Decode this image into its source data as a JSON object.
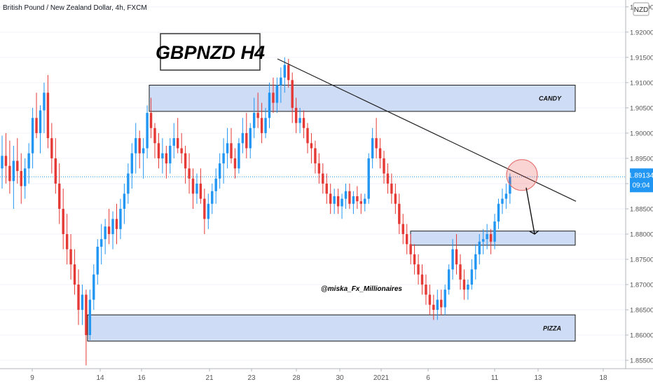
{
  "header": {
    "symbol_title": "British Pound / New Zealand Dollar, 4h, FXCM"
  },
  "title_box": "GBPNZD H4",
  "watermark": "@miska_Fx_Millionaires",
  "currency_badge": "NZD",
  "price_tag": {
    "price": "1.89134",
    "countdown": "09:04"
  },
  "colors": {
    "up": "#2196f3",
    "down": "#e53935",
    "zone_fill": "#cfdcf6",
    "pricetag": "#2196f3"
  },
  "chart_data": {
    "type": "candlestick",
    "title": "GBPNZD H4",
    "ylim": [
      1.8535,
      1.9255
    ],
    "y_ticks": [
      "1.85500",
      "1.86000",
      "1.86500",
      "1.87000",
      "1.87500",
      "1.88000",
      "1.88500",
      "1.89000",
      "1.89500",
      "1.90000",
      "1.90500",
      "1.91000",
      "1.91500",
      "1.92000",
      "1.92500"
    ],
    "x_ticks": [
      "9",
      "14",
      "16",
      "21",
      "23",
      "28",
      "30",
      "2021",
      "6",
      "11",
      "13",
      "18"
    ],
    "current_price": 1.89134,
    "zones": [
      {
        "label": "CANDY",
        "low": 1.9043,
        "high": 1.9095
      },
      {
        "label": "",
        "low": 1.8778,
        "high": 1.8806
      },
      {
        "label": "PIZZA",
        "low": 1.8588,
        "high": 1.864
      }
    ],
    "trendline": {
      "from": 1.9147,
      "to": 1.8865
    },
    "highlight_price": 1.8917,
    "target_price": 1.88,
    "candles_ohlc": [
      [
        1.893,
        1.8995,
        1.889,
        1.8955
      ],
      [
        1.8955,
        1.9,
        1.89,
        1.8935
      ],
      [
        1.8935,
        1.8985,
        1.888,
        1.8905
      ],
      [
        1.8905,
        1.8975,
        1.885,
        1.8945
      ],
      [
        1.8945,
        1.899,
        1.89,
        1.8925
      ],
      [
        1.8925,
        1.896,
        1.886,
        1.8895
      ],
      [
        1.8895,
        1.895,
        1.887,
        1.893
      ],
      [
        1.893,
        1.898,
        1.89,
        1.896
      ],
      [
        1.896,
        1.905,
        1.893,
        1.903
      ],
      [
        1.903,
        1.908,
        1.899,
        1.9
      ],
      [
        1.9,
        1.9055,
        1.896,
        1.9045
      ],
      [
        1.9045,
        1.91,
        1.9,
        1.908
      ],
      [
        1.908,
        1.9115,
        1.897,
        1.899
      ],
      [
        1.899,
        1.902,
        1.892,
        1.895
      ],
      [
        1.895,
        1.899,
        1.888,
        1.89
      ],
      [
        1.89,
        1.894,
        1.882,
        1.885
      ],
      [
        1.885,
        1.889,
        1.877,
        1.88
      ],
      [
        1.88,
        1.884,
        1.874,
        1.877
      ],
      [
        1.877,
        1.88,
        1.871,
        1.874
      ],
      [
        1.874,
        1.877,
        1.868,
        1.87
      ],
      [
        1.87,
        1.873,
        1.862,
        1.865
      ],
      [
        1.865,
        1.87,
        1.862,
        1.868
      ],
      [
        1.868,
        1.869,
        1.854,
        1.86
      ],
      [
        1.86,
        1.869,
        1.859,
        1.867
      ],
      [
        1.867,
        1.874,
        1.865,
        1.872
      ],
      [
        1.872,
        1.879,
        1.87,
        1.8775
      ],
      [
        1.8775,
        1.882,
        1.874,
        1.879
      ],
      [
        1.879,
        1.883,
        1.876,
        1.8815
      ],
      [
        1.8815,
        1.885,
        1.878,
        1.88
      ],
      [
        1.88,
        1.8845,
        1.877,
        1.883
      ],
      [
        1.883,
        1.886,
        1.878,
        1.881
      ],
      [
        1.881,
        1.887,
        1.879,
        1.885
      ],
      [
        1.885,
        1.89,
        1.882,
        1.888
      ],
      [
        1.888,
        1.894,
        1.886,
        1.892
      ],
      [
        1.892,
        1.898,
        1.889,
        1.896
      ],
      [
        1.896,
        1.902,
        1.892,
        1.899
      ],
      [
        1.899,
        1.9005,
        1.893,
        1.896
      ],
      [
        1.896,
        1.899,
        1.891,
        1.897
      ],
      [
        1.897,
        1.9055,
        1.895,
        1.904
      ],
      [
        1.904,
        1.907,
        1.899,
        1.901
      ],
      [
        1.901,
        1.902,
        1.895,
        1.898
      ],
      [
        1.898,
        1.9,
        1.893,
        1.895
      ],
      [
        1.895,
        1.899,
        1.892,
        1.896
      ],
      [
        1.896,
        1.8975,
        1.891,
        1.894
      ],
      [
        1.894,
        1.899,
        1.892,
        1.8975
      ],
      [
        1.8975,
        1.902,
        1.895,
        1.899
      ],
      [
        1.899,
        1.903,
        1.896,
        1.897
      ],
      [
        1.897,
        1.9,
        1.894,
        1.896
      ],
      [
        1.896,
        1.8975,
        1.89,
        1.893
      ],
      [
        1.893,
        1.896,
        1.888,
        1.891
      ],
      [
        1.891,
        1.893,
        1.885,
        1.888
      ],
      [
        1.888,
        1.892,
        1.886,
        1.89
      ],
      [
        1.89,
        1.893,
        1.886,
        1.887
      ],
      [
        1.887,
        1.889,
        1.88,
        1.883
      ],
      [
        1.883,
        1.888,
        1.881,
        1.886
      ],
      [
        1.886,
        1.89,
        1.884,
        1.8885
      ],
      [
        1.8885,
        1.893,
        1.886,
        1.891
      ],
      [
        1.891,
        1.896,
        1.889,
        1.894
      ],
      [
        1.894,
        1.899,
        1.89,
        1.896
      ],
      [
        1.896,
        1.901,
        1.893,
        1.898
      ],
      [
        1.898,
        1.901,
        1.894,
        1.895
      ],
      [
        1.895,
        1.897,
        1.891,
        1.893
      ],
      [
        1.893,
        1.899,
        1.892,
        1.898
      ],
      [
        1.898,
        1.903,
        1.896,
        1.9
      ],
      [
        1.9,
        1.904,
        1.895,
        1.897
      ],
      [
        1.897,
        1.902,
        1.895,
        1.901
      ],
      [
        1.901,
        1.907,
        1.899,
        1.904
      ],
      [
        1.904,
        1.908,
        1.901,
        1.903
      ],
      [
        1.903,
        1.906,
        1.898,
        1.9
      ],
      [
        1.9,
        1.905,
        1.899,
        1.903
      ],
      [
        1.903,
        1.91,
        1.901,
        1.908
      ],
      [
        1.908,
        1.911,
        1.904,
        1.906
      ],
      [
        1.906,
        1.911,
        1.904,
        1.9095
      ],
      [
        1.9095,
        1.913,
        1.906,
        1.911
      ],
      [
        1.911,
        1.915,
        1.908,
        1.9135
      ],
      [
        1.9135,
        1.9147,
        1.909,
        1.9105
      ],
      [
        1.9105,
        1.912,
        1.902,
        1.905
      ],
      [
        1.905,
        1.907,
        1.9,
        1.902
      ],
      [
        1.902,
        1.905,
        1.9,
        1.903
      ],
      [
        1.903,
        1.9045,
        1.899,
        1.901
      ],
      [
        1.901,
        1.902,
        1.896,
        1.898
      ],
      [
        1.898,
        1.9,
        1.894,
        1.897
      ],
      [
        1.897,
        1.8985,
        1.892,
        1.894
      ],
      [
        1.894,
        1.896,
        1.89,
        1.892
      ],
      [
        1.892,
        1.894,
        1.888,
        1.89
      ],
      [
        1.89,
        1.892,
        1.886,
        1.888
      ],
      [
        1.888,
        1.89,
        1.884,
        1.886
      ],
      [
        1.886,
        1.889,
        1.884,
        1.8875
      ],
      [
        1.8875,
        1.889,
        1.884,
        1.8855
      ],
      [
        1.8855,
        1.888,
        1.883,
        1.887
      ],
      [
        1.887,
        1.89,
        1.885,
        1.8885
      ],
      [
        1.8885,
        1.89,
        1.885,
        1.886
      ],
      [
        1.886,
        1.8885,
        1.884,
        1.8875
      ],
      [
        1.8875,
        1.8895,
        1.885,
        1.8865
      ],
      [
        1.8865,
        1.888,
        1.884,
        1.886
      ],
      [
        1.886,
        1.888,
        1.8845,
        1.887
      ],
      [
        1.887,
        1.896,
        1.886,
        1.895
      ],
      [
        1.895,
        1.901,
        1.893,
        1.899
      ],
      [
        1.899,
        1.903,
        1.895,
        1.897
      ],
      [
        1.897,
        1.899,
        1.893,
        1.895
      ],
      [
        1.895,
        1.8965,
        1.89,
        1.892
      ],
      [
        1.892,
        1.894,
        1.888,
        1.89
      ],
      [
        1.89,
        1.892,
        1.886,
        1.888
      ],
      [
        1.888,
        1.89,
        1.884,
        1.886
      ],
      [
        1.886,
        1.888,
        1.88,
        1.882
      ],
      [
        1.882,
        1.884,
        1.878,
        1.88
      ],
      [
        1.88,
        1.882,
        1.876,
        1.878
      ],
      [
        1.878,
        1.88,
        1.874,
        1.876
      ],
      [
        1.876,
        1.878,
        1.872,
        1.874
      ],
      [
        1.874,
        1.876,
        1.87,
        1.872
      ],
      [
        1.872,
        1.874,
        1.868,
        1.87
      ],
      [
        1.87,
        1.872,
        1.866,
        1.868
      ],
      [
        1.868,
        1.87,
        1.864,
        1.866
      ],
      [
        1.866,
        1.868,
        1.863,
        1.865
      ],
      [
        1.865,
        1.869,
        1.863,
        1.867
      ],
      [
        1.867,
        1.869,
        1.864,
        1.8655
      ],
      [
        1.8655,
        1.87,
        1.864,
        1.869
      ],
      [
        1.869,
        1.874,
        1.868,
        1.873
      ],
      [
        1.873,
        1.879,
        1.871,
        1.877
      ],
      [
        1.877,
        1.88,
        1.872,
        1.874
      ],
      [
        1.874,
        1.876,
        1.869,
        1.871
      ],
      [
        1.871,
        1.873,
        1.867,
        1.869
      ],
      [
        1.869,
        1.871,
        1.867,
        1.87
      ],
      [
        1.87,
        1.875,
        1.869,
        1.873
      ],
      [
        1.873,
        1.878,
        1.871,
        1.876
      ],
      [
        1.876,
        1.88,
        1.874,
        1.8785
      ],
      [
        1.8785,
        1.881,
        1.876,
        1.879
      ],
      [
        1.879,
        1.882,
        1.877,
        1.88
      ],
      [
        1.88,
        1.881,
        1.876,
        1.8785
      ],
      [
        1.8785,
        1.884,
        1.877,
        1.8825
      ],
      [
        1.8825,
        1.887,
        1.881,
        1.886
      ],
      [
        1.886,
        1.889,
        1.884,
        1.887
      ],
      [
        1.887,
        1.89,
        1.885,
        1.888
      ],
      [
        1.888,
        1.892,
        1.886,
        1.8913
      ]
    ]
  }
}
